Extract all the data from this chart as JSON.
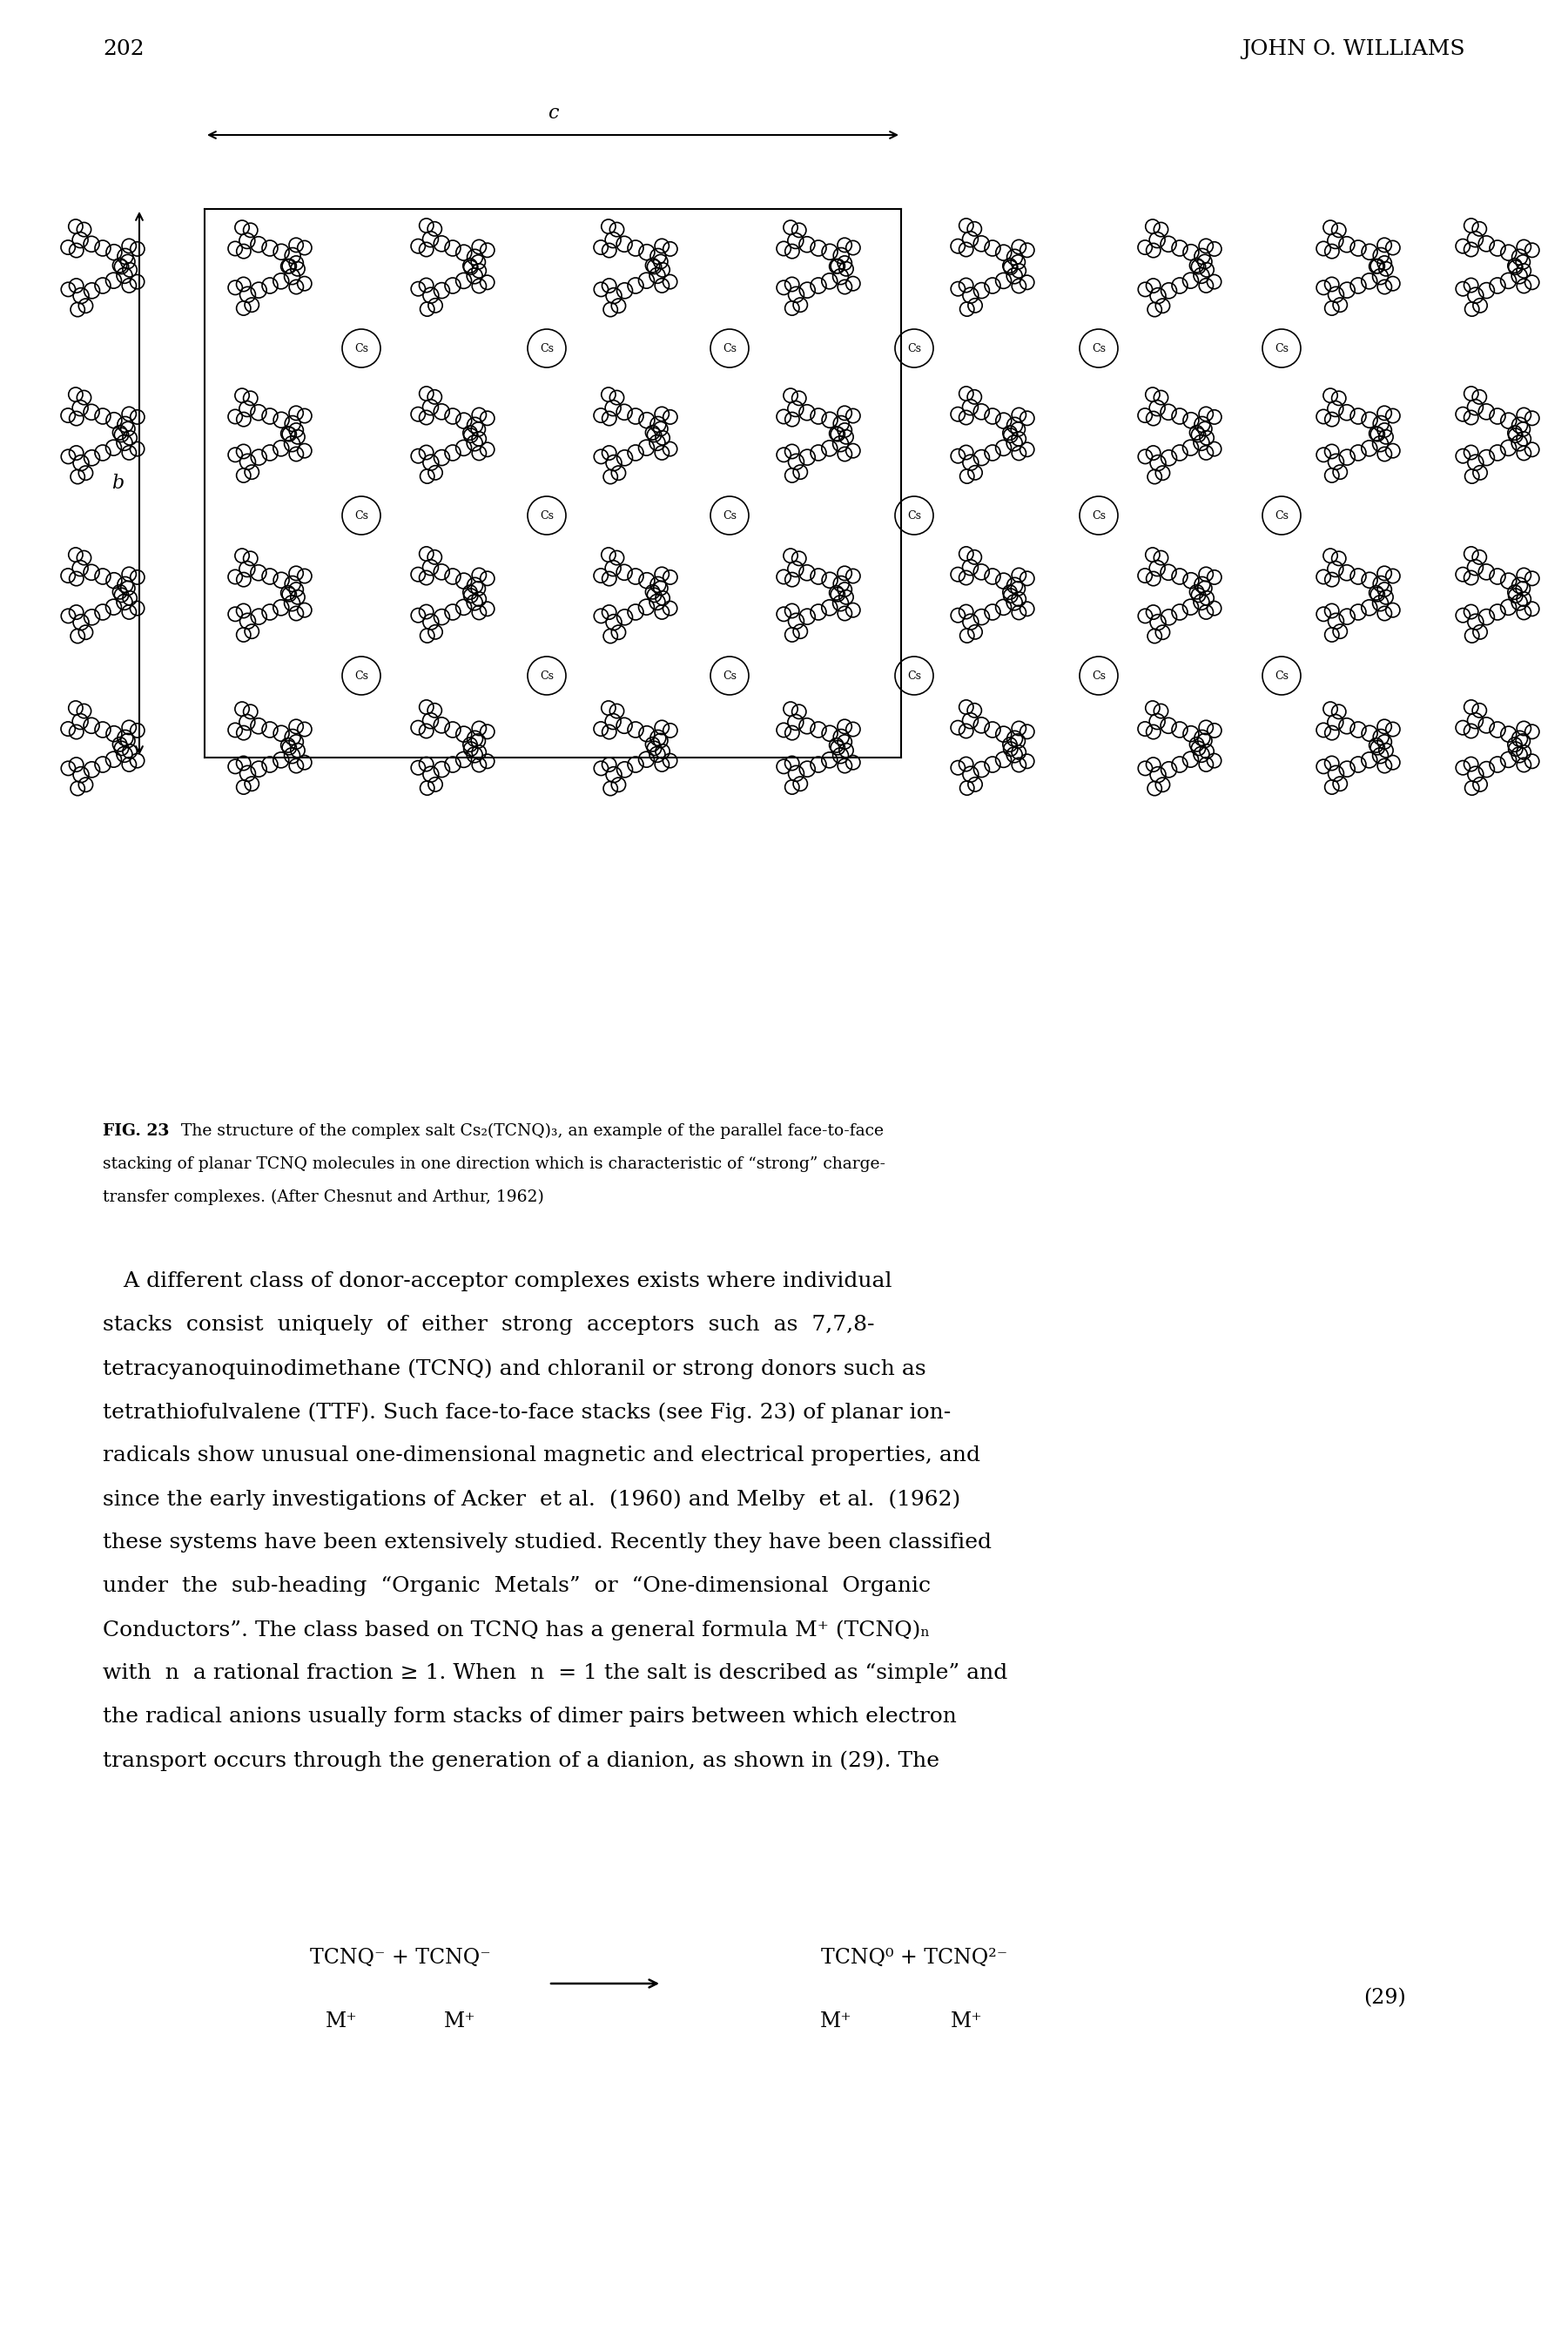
{
  "page_number": "202",
  "header_right": "JOHN O. WILLIAMS",
  "background_color": "#ffffff",
  "text_color": "#000000",
  "fig_caption_bold": "FIG. 23",
  "fig_caption_rest1": "   The structure of the complex salt Cs₂(TCNQ)₃, an example of the parallel face-to-face",
  "fig_caption_rest2": "stacking of planar TCNQ molecules in one direction which is characteristic of “strong” charge-",
  "fig_caption_rest3": "transfer complexes. (After Chesnut and Arthur, 1962)",
  "body_lines": [
    "   A different class of donor-acceptor complexes exists where individual",
    "stacks  consist  uniquely  of  either  strong  acceptors  such  as  7,7,8-",
    "tetracyanoquinodimethane (TCNQ) and chloranil or strong donors such as",
    "tetrathiofulvalene (TTF). Such face-to-face stacks (see Fig. 23) of planar ion-",
    "radicals show unusual one-dimensional magnetic and electrical properties, and",
    "since the early investigations of Acker  et al.  (1960) and Melby  et al.  (1962)",
    "these systems have been extensively studied. Recently they have been classified",
    "under  the  sub-heading  “Organic  Metals”  or  “One-dimensional  Organic",
    "Conductors”. The class based on TCNQ has a general formula M⁺ (TCNQ)ₙ",
    "with  n  a rational fraction ≥ 1. When  n  = 1 the salt is described as “simple” and",
    "the radical anions usually form stacks of dimer pairs between which electron",
    "transport occurs through the generation of a dianion, as shown in (29). The"
  ],
  "eq_left_top": "TCNQ⁻ + TCNQ⁻",
  "eq_left_bot1": "M⁺",
  "eq_left_bot2": "M⁺",
  "eq_right_top": "TCNQ⁰ + TCNQ²⁻",
  "eq_right_bot1": "M⁺",
  "eq_right_bot2": "M⁺",
  "eq_number": "(29)",
  "label_c": "c",
  "label_b": "b",
  "label_cs": "Cs"
}
